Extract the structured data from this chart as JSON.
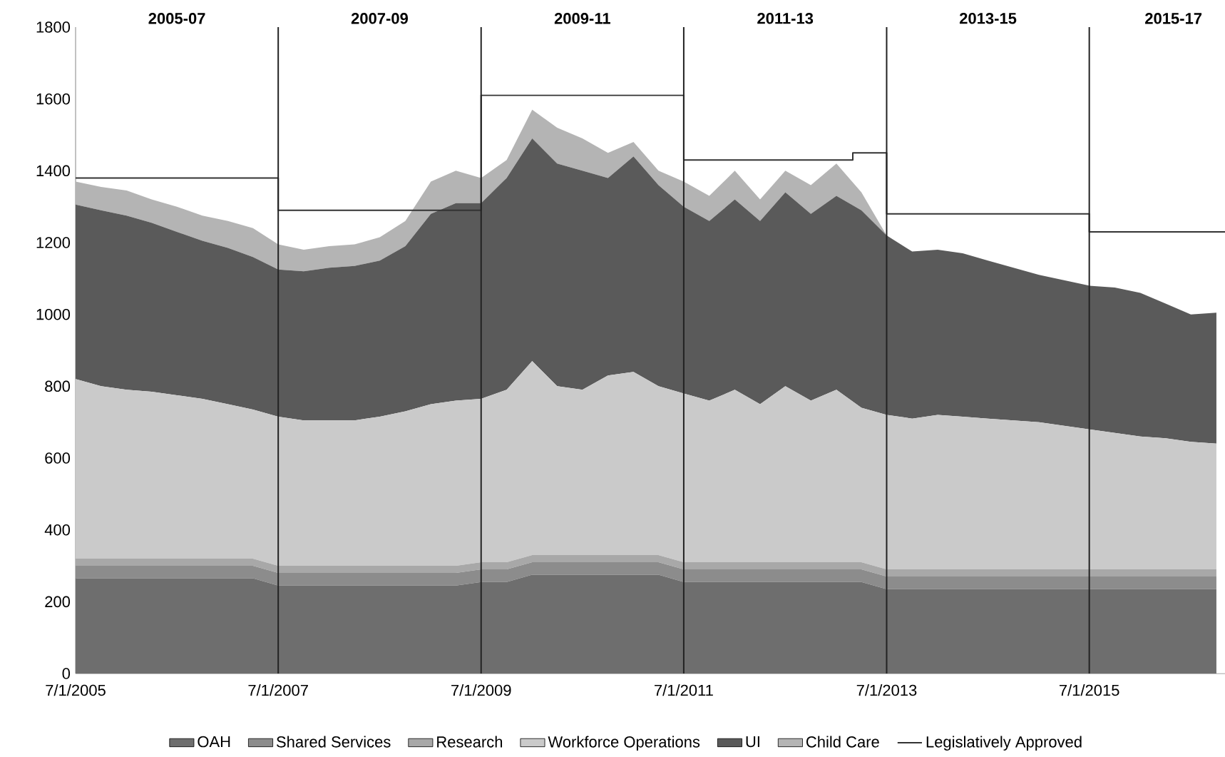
{
  "chart_data": {
    "type": "area",
    "stacked": true,
    "legend": "bottom",
    "x": [
      "2005-07",
      "2005-10",
      "2006-01",
      "2006-04",
      "2006-07",
      "2006-10",
      "2007-01",
      "2007-04",
      "2007-07",
      "2007-10",
      "2008-01",
      "2008-04",
      "2008-07",
      "2008-10",
      "2009-01",
      "2009-04",
      "2009-07",
      "2009-10",
      "2010-01",
      "2010-04",
      "2010-07",
      "2010-10",
      "2011-01",
      "2011-04",
      "2011-07",
      "2011-10",
      "2012-01",
      "2012-04",
      "2012-07",
      "2012-10",
      "2013-01",
      "2013-04",
      "2013-07",
      "2013-10",
      "2014-01",
      "2014-04",
      "2014-07",
      "2014-10",
      "2015-01",
      "2015-04",
      "2015-07",
      "2015-10",
      "2016-01",
      "2016-04",
      "2016-07",
      "2016-10"
    ],
    "series": [
      {
        "name": "OAH",
        "color": "#6e6e6e",
        "values": [
          265,
          265,
          265,
          265,
          265,
          265,
          265,
          265,
          245,
          245,
          245,
          245,
          245,
          245,
          245,
          245,
          255,
          255,
          275,
          275,
          275,
          275,
          275,
          275,
          255,
          255,
          255,
          255,
          255,
          255,
          255,
          255,
          235,
          235,
          235,
          235,
          235,
          235,
          235,
          235,
          235,
          235,
          235,
          235,
          235,
          235
        ]
      },
      {
        "name": "Shared Services",
        "color": "#8c8c8c",
        "values": [
          35,
          35,
          35,
          35,
          35,
          35,
          35,
          35,
          35,
          35,
          35,
          35,
          35,
          35,
          35,
          35,
          35,
          35,
          35,
          35,
          35,
          35,
          35,
          35,
          35,
          35,
          35,
          35,
          35,
          35,
          35,
          35,
          35,
          35,
          35,
          35,
          35,
          35,
          35,
          35,
          35,
          35,
          35,
          35,
          35,
          35
        ]
      },
      {
        "name": "Research",
        "color": "#a8a8a8",
        "values": [
          20,
          20,
          20,
          20,
          20,
          20,
          20,
          20,
          20,
          20,
          20,
          20,
          20,
          20,
          20,
          20,
          20,
          20,
          20,
          20,
          20,
          20,
          20,
          20,
          20,
          20,
          20,
          20,
          20,
          20,
          20,
          20,
          20,
          20,
          20,
          20,
          20,
          20,
          20,
          20,
          20,
          20,
          20,
          20,
          20,
          20
        ]
      },
      {
        "name": "Workforce Operations",
        "color": "#cacaca",
        "values": [
          500,
          480,
          470,
          465,
          455,
          445,
          430,
          415,
          415,
          405,
          405,
          405,
          415,
          430,
          450,
          460,
          455,
          480,
          540,
          470,
          460,
          500,
          510,
          470,
          470,
          450,
          480,
          440,
          490,
          450,
          480,
          430,
          430,
          420,
          430,
          425,
          420,
          415,
          410,
          400,
          390,
          380,
          370,
          365,
          355,
          350
        ]
      },
      {
        "name": "UI",
        "color": "#5a5a5a",
        "values": [
          486,
          490,
          485,
          470,
          455,
          440,
          435,
          425,
          410,
          415,
          425,
          430,
          435,
          460,
          530,
          550,
          545,
          590,
          620,
          620,
          610,
          550,
          600,
          560,
          520,
          500,
          530,
          510,
          540,
          520,
          540,
          550,
          500,
          465,
          460,
          455,
          440,
          425,
          410,
          405,
          400,
          405,
          400,
          375,
          355,
          365
        ]
      },
      {
        "name": "Child Care",
        "color": "#b4b4b4",
        "values": [
          64,
          65,
          70,
          65,
          70,
          70,
          75,
          80,
          70,
          60,
          60,
          60,
          65,
          70,
          90,
          90,
          70,
          50,
          80,
          100,
          90,
          70,
          40,
          40,
          70,
          70,
          80,
          60,
          60,
          80,
          90,
          50,
          0,
          0,
          0,
          0,
          0,
          0,
          0,
          0,
          0,
          0,
          0,
          0,
          0,
          0
        ]
      },
      {
        "name": "Legislatively Approved",
        "type": "step",
        "color": "#333333",
        "x": [
          "2005-07-01",
          "2007-07-01",
          "2009-07-01",
          "2011-07-01",
          "2013-03-01",
          "2013-07-01",
          "2015-07-01",
          "2016-11-01"
        ],
        "values": [
          1380,
          1290,
          1610,
          1430,
          1450,
          1280,
          1230,
          1230
        ]
      }
    ],
    "xlim": [
      "2005-07-01",
      "2016-11-01"
    ],
    "xticks": [
      {
        "value": "2005-07-01",
        "label": "7/1/2005"
      },
      {
        "value": "2007-07-01",
        "label": "7/1/2007"
      },
      {
        "value": "2009-07-01",
        "label": "7/1/2009"
      },
      {
        "value": "2011-07-01",
        "label": "7/1/2011"
      },
      {
        "value": "2013-07-01",
        "label": "7/1/2013"
      },
      {
        "value": "2015-07-01",
        "label": "7/1/2015"
      }
    ],
    "annotations": [
      "2005-07",
      "2007-09",
      "2009-11",
      "2011-13",
      "2013-15",
      "2015-17"
    ],
    "ylim": [
      0,
      1800
    ],
    "yticks": [
      0,
      200,
      400,
      600,
      800,
      1000,
      1200,
      1400,
      1600,
      1800
    ],
    "ref_lines": [
      {
        "axis": "x",
        "value": "2007-07-01",
        "color": "#222222"
      },
      {
        "axis": "x",
        "value": "2009-07-01",
        "color": "#222222"
      },
      {
        "axis": "x",
        "value": "2011-07-01",
        "color": "#222222"
      },
      {
        "axis": "x",
        "value": "2013-07-01",
        "color": "#222222"
      },
      {
        "axis": "x",
        "value": "2015-07-01",
        "color": "#222222"
      }
    ]
  }
}
